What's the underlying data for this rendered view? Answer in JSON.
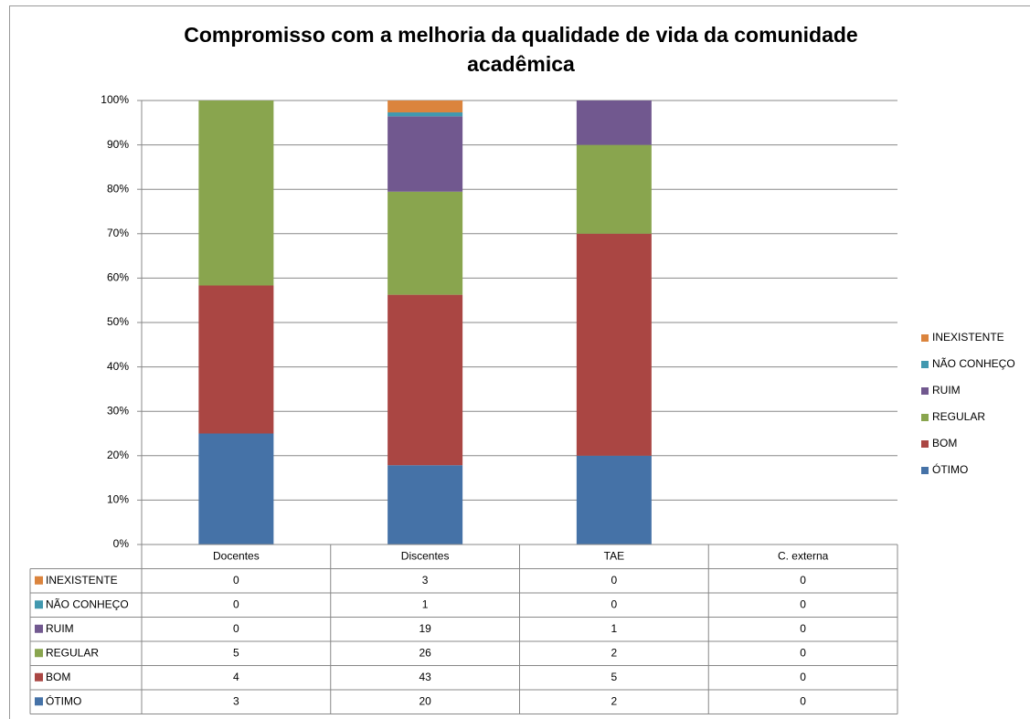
{
  "chart_data": {
    "type": "bar",
    "stack": "percent",
    "title": "Compromisso com a melhoria da qualidade de vida da comunidade acadêmica",
    "categories": [
      "Docentes",
      "Discentes",
      "TAE",
      "C. externa"
    ],
    "series": [
      {
        "name": "ÓTIMO",
        "color": "#4572a7",
        "values": [
          3,
          20,
          2,
          0
        ]
      },
      {
        "name": "BOM",
        "color": "#aa4643",
        "values": [
          4,
          43,
          5,
          0
        ]
      },
      {
        "name": "REGULAR",
        "color": "#89a54e",
        "values": [
          5,
          26,
          2,
          0
        ]
      },
      {
        "name": "RUIM",
        "color": "#71588f",
        "values": [
          0,
          19,
          1,
          0
        ]
      },
      {
        "name": "NÃO CONHEÇO",
        "color": "#4198af",
        "values": [
          0,
          1,
          0,
          0
        ]
      },
      {
        "name": "INEXISTENTE",
        "color": "#db843d",
        "values": [
          0,
          3,
          0,
          0
        ]
      }
    ],
    "ylim": [
      0,
      100
    ],
    "yticks": [
      {
        "value": 0,
        "label": "0%"
      },
      {
        "value": 10,
        "label": "10%"
      },
      {
        "value": 20,
        "label": "20%"
      },
      {
        "value": 30,
        "label": "30%"
      },
      {
        "value": 40,
        "label": "40%"
      },
      {
        "value": 50,
        "label": "50%"
      },
      {
        "value": 60,
        "label": "60%"
      },
      {
        "value": 70,
        "label": "70%"
      },
      {
        "value": 80,
        "label": "80%"
      },
      {
        "value": 90,
        "label": "90%"
      },
      {
        "value": 100,
        "label": "100%"
      }
    ],
    "grid": true,
    "legend": "right",
    "data_table": true
  }
}
